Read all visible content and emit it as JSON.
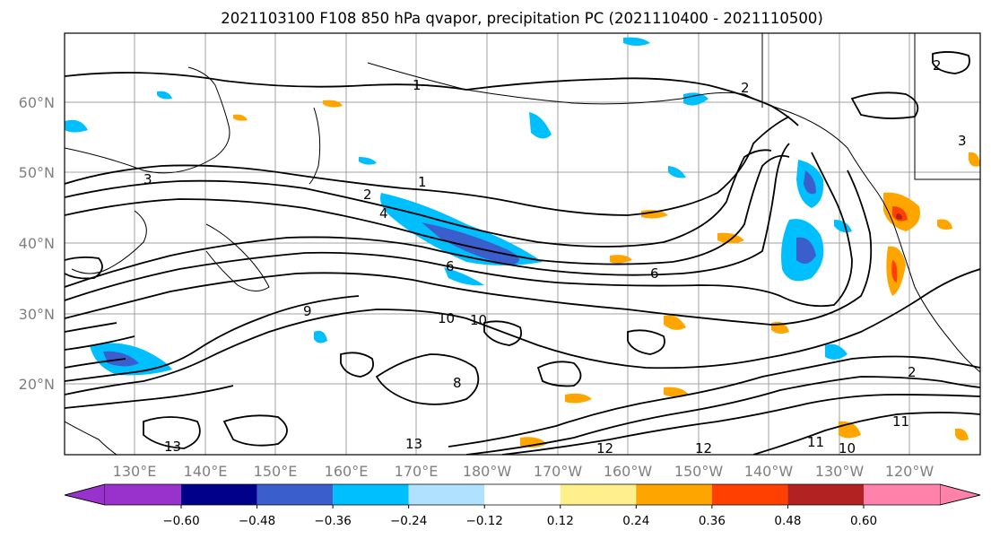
{
  "title": "2021103100 F108 850 hPa qvapor, precipitation PC (2021110400 - 2021110500)",
  "lat_labels": [
    "60°N",
    "50°N",
    "40°N",
    "30°N",
    "20°N"
  ],
  "lon_labels": [
    "130°E",
    "140°E",
    "150°E",
    "160°E",
    "170°E",
    "180°W",
    "170°W",
    "160°W",
    "150°W",
    "140°W",
    "130°W",
    "120°W"
  ],
  "colorbar": {
    "colors": [
      "#9932cc",
      "#00008b",
      "#3a5fcd",
      "#00bfff",
      "#b0e2ff",
      "#ffffff",
      "#fff08b",
      "#ffa500",
      "#ff4000",
      "#b22222",
      "#ff82ab"
    ],
    "tick_labels": [
      "−0.60",
      "−0.48",
      "−0.36",
      "−0.24",
      "−0.12",
      "0.12",
      "0.24",
      "0.36",
      "0.48",
      "0.60"
    ]
  },
  "contour_labels": [
    "1",
    "1",
    "2",
    "2",
    "2",
    "3",
    "4",
    "6",
    "6",
    "8",
    "9",
    "10",
    "10",
    "12",
    "13",
    "13",
    "11",
    "10",
    "11",
    "12",
    "3",
    "2"
  ]
}
